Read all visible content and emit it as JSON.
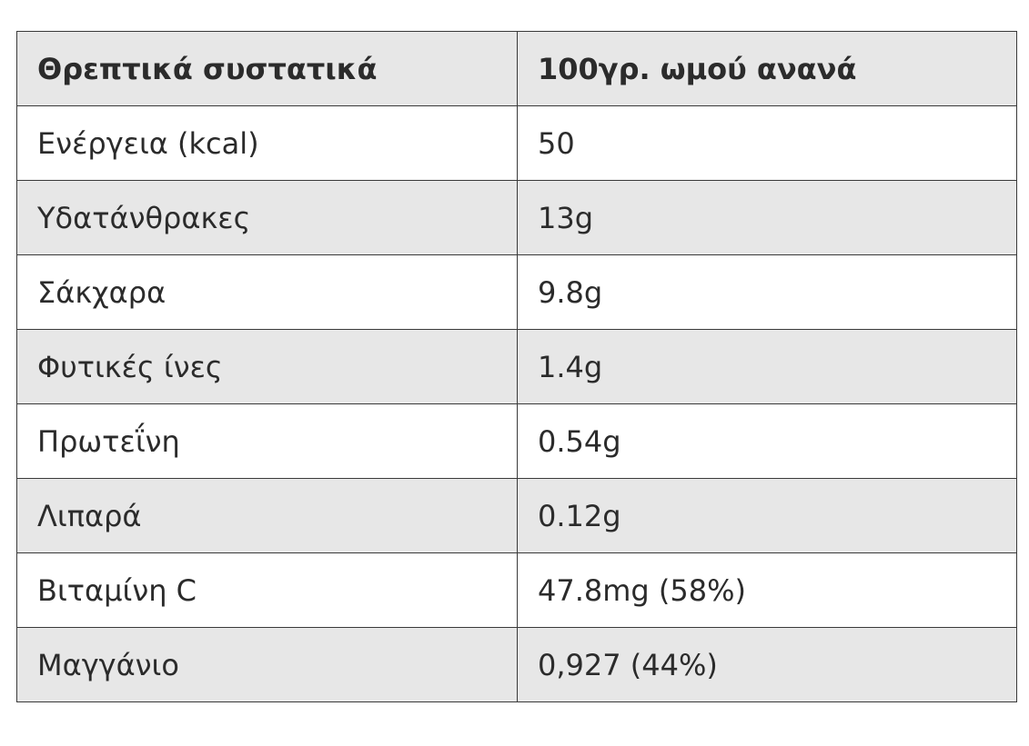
{
  "table": {
    "headers": [
      "Θρεπτικά συστατικά",
      "100γρ. ωμού ανανά"
    ],
    "rows": [
      [
        "Ενέργεια (kcal)",
        "50"
      ],
      [
        "Υδατάνθρακες",
        "13g"
      ],
      [
        "Σάκχαρα",
        "9.8g"
      ],
      [
        "Φυτικές ίνες",
        "1.4g"
      ],
      [
        "Πρωτεΐνη",
        "0.54g"
      ],
      [
        "Λιπαρά",
        "0.12g"
      ],
      [
        "Βιταμίνη C",
        "47.8mg (58%)"
      ],
      [
        "Μαγγάνιο",
        "0,927 (44%)"
      ]
    ]
  },
  "colors": {
    "border": "#3a3a3a",
    "shaded_row": "#e7e7e7",
    "plain_row": "#ffffff",
    "text": "#2b2b2b"
  }
}
